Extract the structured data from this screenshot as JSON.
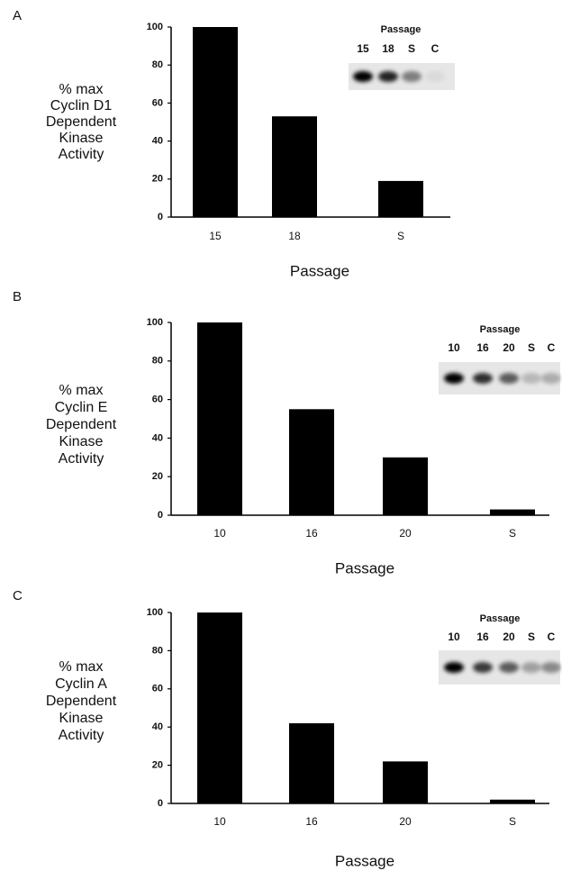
{
  "chart_data": [
    {
      "type": "bar",
      "panel": "A",
      "ylabel": [
        "% max",
        "Cyclin D1",
        "Dependent",
        "Kinase",
        "Activity"
      ],
      "xlabel": "Passage",
      "categories": [
        "15",
        "18",
        "S"
      ],
      "values": [
        100,
        53,
        19
      ],
      "color": "#000000",
      "ylim": [
        0,
        100
      ],
      "yticks": [
        0,
        20,
        40,
        60,
        80,
        100
      ],
      "inset_title": "Passage",
      "inset_labels": [
        "15",
        "18",
        "S",
        "C"
      ]
    },
    {
      "type": "bar",
      "panel": "B",
      "ylabel": [
        "% max",
        "Cyclin E",
        "Dependent",
        "Kinase",
        "Activity"
      ],
      "xlabel": "Passage",
      "categories": [
        "10",
        "16",
        "20",
        "S"
      ],
      "values": [
        100,
        55,
        30,
        3
      ],
      "color": "#000000",
      "ylim": [
        0,
        100
      ],
      "yticks": [
        0,
        20,
        40,
        60,
        80,
        100
      ],
      "inset_title": "Passage",
      "inset_labels": [
        "10",
        "16",
        "20",
        "S",
        "C"
      ]
    },
    {
      "type": "bar",
      "panel": "C",
      "ylabel": [
        "% max",
        "Cyclin A",
        "Dependent",
        "Kinase",
        "Activity"
      ],
      "xlabel": "Passage",
      "categories": [
        "10",
        "16",
        "20",
        "S"
      ],
      "values": [
        100,
        42,
        22,
        2
      ],
      "color": "#000000",
      "ylim": [
        0,
        100
      ],
      "yticks": [
        0,
        20,
        40,
        60,
        80,
        100
      ],
      "inset_title": "Passage",
      "inset_labels": [
        "10",
        "16",
        "20",
        "S",
        "C"
      ]
    }
  ]
}
